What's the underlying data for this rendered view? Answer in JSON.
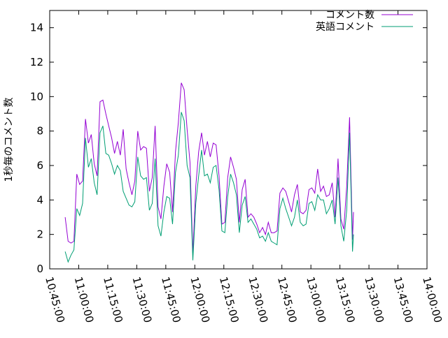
{
  "chart_data": {
    "type": "line",
    "title": "",
    "xlabel": "",
    "ylabel": "1秒毎のコメント数",
    "xlim": [
      "10:45:00",
      "14:00:00"
    ],
    "ylim": [
      0,
      15
    ],
    "x_ticks": [
      "10:45:00",
      "11:00:00",
      "11:15:00",
      "11:30:00",
      "11:45:00",
      "12:00:00",
      "12:15:00",
      "12:30:00",
      "12:45:00",
      "13:00:00",
      "13:15:00",
      "13:30:00",
      "13:45:00",
      "14:00:00"
    ],
    "y_ticks": [
      0,
      2,
      4,
      6,
      8,
      10,
      12,
      14
    ],
    "grid": false,
    "legend_position": "top-right",
    "series": [
      {
        "name": "コメント数",
        "color": "#9400d3",
        "points": [
          [
            "10:53:00",
            3.0
          ],
          [
            "10:54:30",
            1.6
          ],
          [
            "10:56:00",
            1.5
          ],
          [
            "10:57:30",
            1.6
          ],
          [
            "10:59:00",
            5.5
          ],
          [
            "11:00:30",
            4.9
          ],
          [
            "11:02:00",
            5.1
          ],
          [
            "11:03:30",
            8.7
          ],
          [
            "11:05:00",
            7.3
          ],
          [
            "11:06:30",
            7.8
          ],
          [
            "11:08:00",
            6.1
          ],
          [
            "11:09:30",
            5.4
          ],
          [
            "11:11:00",
            9.7
          ],
          [
            "11:12:30",
            9.8
          ],
          [
            "11:14:00",
            9.0
          ],
          [
            "11:15:30",
            8.3
          ],
          [
            "11:17:00",
            7.6
          ],
          [
            "11:18:30",
            6.7
          ],
          [
            "11:20:00",
            7.4
          ],
          [
            "11:21:30",
            6.6
          ],
          [
            "11:23:00",
            8.1
          ],
          [
            "11:24:30",
            5.8
          ],
          [
            "11:26:00",
            5.0
          ],
          [
            "11:27:30",
            4.3
          ],
          [
            "11:29:00",
            5.1
          ],
          [
            "11:30:30",
            8.0
          ],
          [
            "11:32:00",
            6.9
          ],
          [
            "11:33:30",
            7.1
          ],
          [
            "11:35:00",
            7.0
          ],
          [
            "11:36:30",
            4.5
          ],
          [
            "11:38:00",
            5.3
          ],
          [
            "11:39:30",
            8.3
          ],
          [
            "11:41:00",
            3.6
          ],
          [
            "11:42:30",
            2.9
          ],
          [
            "11:44:00",
            4.8
          ],
          [
            "11:45:30",
            6.1
          ],
          [
            "11:47:00",
            5.6
          ],
          [
            "11:48:30",
            3.3
          ],
          [
            "11:50:00",
            6.8
          ],
          [
            "11:51:30",
            8.5
          ],
          [
            "11:53:00",
            10.8
          ],
          [
            "11:54:30",
            10.4
          ],
          [
            "11:56:00",
            8.1
          ],
          [
            "11:57:30",
            6.2
          ],
          [
            "11:59:00",
            0.9
          ],
          [
            "12:00:30",
            4.8
          ],
          [
            "12:02:00",
            6.8
          ],
          [
            "12:03:30",
            7.9
          ],
          [
            "12:05:00",
            6.6
          ],
          [
            "12:06:30",
            7.4
          ],
          [
            "12:08:00",
            6.5
          ],
          [
            "12:09:30",
            7.3
          ],
          [
            "12:11:00",
            7.2
          ],
          [
            "12:12:30",
            5.4
          ],
          [
            "12:14:00",
            2.6
          ],
          [
            "12:15:30",
            2.7
          ],
          [
            "12:17:00",
            5.3
          ],
          [
            "12:18:30",
            6.5
          ],
          [
            "12:20:00",
            5.9
          ],
          [
            "12:21:30",
            5.2
          ],
          [
            "12:23:00",
            2.7
          ],
          [
            "12:24:30",
            4.6
          ],
          [
            "12:26:00",
            5.2
          ],
          [
            "12:27:30",
            3.0
          ],
          [
            "12:29:00",
            3.2
          ],
          [
            "12:30:30",
            3.0
          ],
          [
            "12:32:00",
            2.6
          ],
          [
            "12:33:30",
            2.1
          ],
          [
            "12:35:00",
            2.4
          ],
          [
            "12:36:30",
            2.0
          ],
          [
            "12:38:00",
            2.7
          ],
          [
            "12:39:30",
            2.1
          ],
          [
            "12:41:00",
            2.1
          ],
          [
            "12:42:30",
            2.2
          ],
          [
            "12:44:00",
            4.4
          ],
          [
            "12:45:30",
            4.7
          ],
          [
            "12:47:00",
            4.5
          ],
          [
            "12:48:30",
            3.9
          ],
          [
            "12:50:00",
            3.3
          ],
          [
            "12:51:30",
            4.3
          ],
          [
            "12:53:00",
            4.9
          ],
          [
            "12:54:30",
            3.3
          ],
          [
            "12:56:00",
            3.2
          ],
          [
            "12:57:30",
            3.4
          ],
          [
            "12:59:00",
            4.6
          ],
          [
            "13:00:30",
            4.7
          ],
          [
            "13:02:00",
            4.4
          ],
          [
            "13:03:30",
            5.8
          ],
          [
            "13:05:00",
            4.5
          ],
          [
            "13:06:30",
            4.8
          ],
          [
            "13:08:00",
            4.2
          ],
          [
            "13:09:30",
            4.3
          ],
          [
            "13:11:00",
            5.0
          ],
          [
            "13:12:30",
            3.0
          ],
          [
            "13:14:00",
            6.4
          ],
          [
            "13:15:30",
            2.9
          ],
          [
            "13:17:00",
            2.3
          ],
          [
            "13:18:30",
            4.8
          ],
          [
            "13:20:00",
            8.8
          ],
          [
            "13:21:30",
            1.7
          ],
          [
            "13:22:00",
            3.3
          ]
        ]
      },
      {
        "name": "英語コメント",
        "color": "#009e73",
        "points": [
          [
            "10:53:00",
            1.0
          ],
          [
            "10:54:30",
            0.4
          ],
          [
            "10:56:00",
            0.8
          ],
          [
            "10:57:30",
            1.1
          ],
          [
            "10:59:00",
            3.5
          ],
          [
            "11:00:30",
            3.1
          ],
          [
            "11:02:00",
            3.8
          ],
          [
            "11:03:30",
            7.6
          ],
          [
            "11:05:00",
            5.9
          ],
          [
            "11:06:30",
            6.4
          ],
          [
            "11:08:00",
            5.0
          ],
          [
            "11:09:30",
            4.3
          ],
          [
            "11:11:00",
            7.9
          ],
          [
            "11:12:30",
            8.3
          ],
          [
            "11:14:00",
            6.7
          ],
          [
            "11:15:30",
            6.6
          ],
          [
            "11:17:00",
            6.1
          ],
          [
            "11:18:30",
            5.5
          ],
          [
            "11:20:00",
            6.0
          ],
          [
            "11:21:30",
            5.7
          ],
          [
            "11:23:00",
            4.5
          ],
          [
            "11:24:30",
            4.1
          ],
          [
            "11:26:00",
            3.7
          ],
          [
            "11:27:30",
            3.6
          ],
          [
            "11:29:00",
            3.9
          ],
          [
            "11:30:30",
            6.5
          ],
          [
            "11:32:00",
            5.4
          ],
          [
            "11:33:30",
            5.2
          ],
          [
            "11:35:00",
            5.3
          ],
          [
            "11:36:30",
            3.4
          ],
          [
            "11:38:00",
            3.8
          ],
          [
            "11:39:30",
            6.4
          ],
          [
            "11:41:00",
            2.5
          ],
          [
            "11:42:30",
            1.9
          ],
          [
            "11:44:00",
            3.3
          ],
          [
            "11:45:30",
            4.2
          ],
          [
            "11:47:00",
            4.1
          ],
          [
            "11:48:30",
            2.6
          ],
          [
            "11:50:00",
            5.6
          ],
          [
            "11:51:30",
            6.6
          ],
          [
            "11:53:00",
            9.1
          ],
          [
            "11:54:30",
            8.6
          ],
          [
            "11:56:00",
            6.0
          ],
          [
            "11:57:30",
            5.3
          ],
          [
            "11:59:00",
            0.5
          ],
          [
            "12:00:30",
            3.8
          ],
          [
            "12:02:00",
            5.4
          ],
          [
            "12:03:30",
            6.9
          ],
          [
            "12:05:00",
            5.4
          ],
          [
            "12:06:30",
            5.5
          ],
          [
            "12:08:00",
            5.0
          ],
          [
            "12:09:30",
            5.9
          ],
          [
            "12:11:00",
            6.0
          ],
          [
            "12:12:30",
            4.6
          ],
          [
            "12:14:00",
            2.2
          ],
          [
            "12:15:30",
            2.1
          ],
          [
            "12:17:00",
            4.2
          ],
          [
            "12:18:30",
            5.5
          ],
          [
            "12:20:00",
            5.0
          ],
          [
            "12:21:30",
            4.3
          ],
          [
            "12:23:00",
            2.1
          ],
          [
            "12:24:30",
            3.7
          ],
          [
            "12:26:00",
            4.2
          ],
          [
            "12:27:30",
            2.7
          ],
          [
            "12:29:00",
            2.9
          ],
          [
            "12:30:30",
            2.6
          ],
          [
            "12:32:00",
            2.3
          ],
          [
            "12:33:30",
            1.8
          ],
          [
            "12:35:00",
            1.9
          ],
          [
            "12:36:30",
            1.6
          ],
          [
            "12:38:00",
            2.1
          ],
          [
            "12:39:30",
            1.6
          ],
          [
            "12:41:00",
            1.5
          ],
          [
            "12:42:30",
            1.4
          ],
          [
            "12:44:00",
            3.5
          ],
          [
            "12:45:30",
            4.1
          ],
          [
            "12:47:00",
            3.5
          ],
          [
            "12:48:30",
            3.0
          ],
          [
            "12:50:00",
            2.5
          ],
          [
            "12:51:30",
            3.0
          ],
          [
            "12:53:00",
            4.0
          ],
          [
            "12:54:30",
            2.7
          ],
          [
            "12:56:00",
            2.5
          ],
          [
            "12:57:30",
            2.6
          ],
          [
            "12:59:00",
            3.8
          ],
          [
            "13:00:30",
            3.9
          ],
          [
            "13:02:00",
            3.4
          ],
          [
            "13:03:30",
            4.3
          ],
          [
            "13:05:00",
            4.0
          ],
          [
            "13:06:30",
            4.0
          ],
          [
            "13:08:00",
            3.2
          ],
          [
            "13:09:30",
            3.5
          ],
          [
            "13:11:00",
            4.0
          ],
          [
            "13:12:30",
            2.6
          ],
          [
            "13:14:00",
            5.3
          ],
          [
            "13:15:30",
            2.5
          ],
          [
            "13:17:00",
            1.6
          ],
          [
            "13:18:30",
            3.4
          ],
          [
            "13:20:00",
            7.9
          ],
          [
            "13:21:30",
            1.0
          ],
          [
            "13:22:00",
            2.0
          ]
        ]
      }
    ]
  }
}
